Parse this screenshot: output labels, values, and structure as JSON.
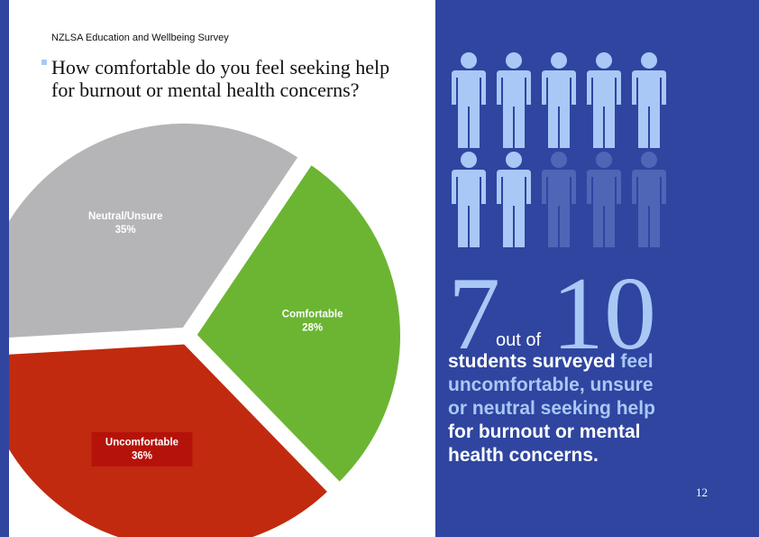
{
  "header": "NZLSA Education and Wellbeing Survey",
  "chart_data": {
    "type": "pie",
    "title": "How comfortable do you feel seeking help for burnout or mental health concerns?",
    "categories": [
      "Comfortable",
      "Uncomfortable",
      "Neutral/Unsure"
    ],
    "values": [
      28,
      36,
      35
    ],
    "value_labels": [
      "28%",
      "36%",
      "35%"
    ],
    "colors": [
      "#6bb533",
      "#c12a0f",
      "#b5b5b7"
    ],
    "label_background": [
      null,
      "#b5120a",
      null
    ]
  },
  "callout": {
    "count": 7,
    "total": 10,
    "joiner": "out of",
    "text_parts": [
      {
        "text": "students surveyed ",
        "color": "#ffffff"
      },
      {
        "text": "feel uncomfortable, unsure or neutral seeking help",
        "color": "#a9c8f5"
      },
      {
        "text": " for burnout or mental health concerns.",
        "color": "#ffffff"
      }
    ],
    "lit_color": "#a9c8f5",
    "dim_color": "#4f66b6"
  },
  "page_number": "12"
}
